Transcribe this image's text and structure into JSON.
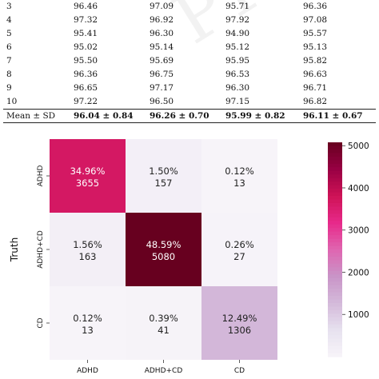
{
  "table": {
    "rows": [
      {
        "fold": "3",
        "v1": "96.46",
        "v2": "97.09",
        "v3": "95.71",
        "v4": "96.36"
      },
      {
        "fold": "4",
        "v1": "97.32",
        "v2": "96.92",
        "v3": "97.92",
        "v4": "97.08"
      },
      {
        "fold": "5",
        "v1": "95.41",
        "v2": "96.30",
        "v3": "94.90",
        "v4": "95.57"
      },
      {
        "fold": "6",
        "v1": "95.02",
        "v2": "95.14",
        "v3": "95.12",
        "v4": "95.13"
      },
      {
        "fold": "7",
        "v1": "95.50",
        "v2": "95.69",
        "v3": "95.95",
        "v4": "95.82"
      },
      {
        "fold": "8",
        "v1": "96.36",
        "v2": "96.75",
        "v3": "96.53",
        "v4": "96.63"
      },
      {
        "fold": "9",
        "v1": "96.65",
        "v2": "97.17",
        "v3": "96.30",
        "v4": "96.71"
      },
      {
        "fold": "10",
        "v1": "97.22",
        "v2": "96.50",
        "v3": "97.15",
        "v4": "96.82"
      }
    ],
    "mean_row": {
      "label": "Mean ± SD",
      "v1": "96.04 ± 0.84",
      "v2": "96.26 ± 0.70",
      "v3": "95.99 ± 0.82",
      "v4": "96.11 ± 0.67"
    }
  },
  "watermark": "PREPRINT",
  "chart_data": {
    "type": "heatmap",
    "ylabel": "Truth",
    "x_categories": [
      "ADHD",
      "ADHD+CD",
      "CD"
    ],
    "y_categories": [
      "ADHD",
      "ADHD+CD",
      "CD"
    ],
    "counts": [
      [
        3655,
        157,
        13
      ],
      [
        163,
        5080,
        27
      ],
      [
        13,
        41,
        1306
      ]
    ],
    "percent_labels": [
      [
        "34.96%",
        "1.50%",
        "0.12%"
      ],
      [
        "1.56%",
        "48.59%",
        "0.26%"
      ],
      [
        "0.12%",
        "0.39%",
        "12.49%"
      ]
    ],
    "count_labels": [
      [
        "3655",
        "157",
        "13"
      ],
      [
        "163",
        "5080",
        "27"
      ],
      [
        "13",
        "41",
        "1306"
      ]
    ],
    "colorbar": {
      "min": 0,
      "max": 5080,
      "ticks": [
        1000,
        2000,
        3000,
        4000,
        5000
      ],
      "tick_labels": [
        "1000",
        "2000",
        "3000",
        "4000",
        "5000"
      ]
    },
    "colormap": [
      "#f7f4f9",
      "#e7e1ef",
      "#d4b9da",
      "#c994c7",
      "#df65b0",
      "#e7298a",
      "#ce1256",
      "#980043",
      "#67001f"
    ]
  }
}
